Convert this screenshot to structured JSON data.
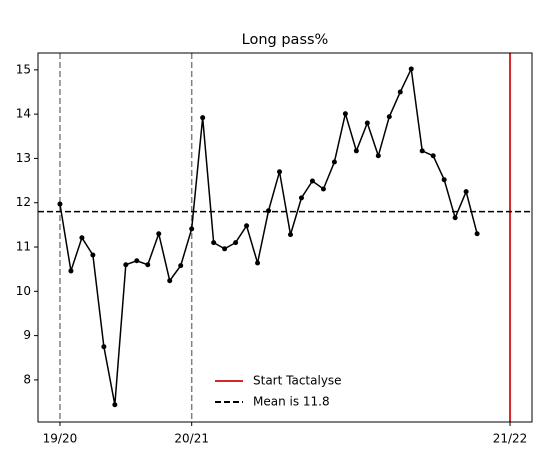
{
  "chart_data": {
    "type": "line",
    "title": "Long pass%",
    "series": [
      {
        "name": "Long pass%",
        "color": "#000000",
        "values": [
          11.97,
          10.46,
          11.21,
          10.82,
          8.75,
          7.44,
          10.6,
          10.69,
          10.6,
          11.3,
          10.24,
          10.58,
          11.41,
          13.92,
          11.1,
          10.96,
          11.1,
          11.48,
          10.64,
          11.82,
          12.7,
          11.28,
          12.11,
          12.49,
          12.31,
          12.92,
          14.01,
          13.17,
          13.8,
          13.06,
          13.94,
          14.5,
          15.02,
          13.17,
          13.06,
          12.52,
          11.66,
          12.25,
          11.3
        ]
      }
    ],
    "mean": 11.8,
    "xlim": [
      -2,
      43
    ],
    "xticks": [
      {
        "value": 0,
        "label": "19/20"
      },
      {
        "value": 12,
        "label": "20/21"
      },
      {
        "value": 41,
        "label": "21/22"
      }
    ],
    "ylim": [
      7.05,
      15.38
    ],
    "yticks": [
      8,
      9,
      10,
      11,
      12,
      13,
      14,
      15
    ],
    "legend": {
      "position": "lower center",
      "entries": [
        {
          "label": "Start Tactalyse",
          "color": "#d62728",
          "style": "solid"
        },
        {
          "label": "Mean is 11.8",
          "color": "#000000",
          "style": "dashed"
        }
      ]
    }
  }
}
